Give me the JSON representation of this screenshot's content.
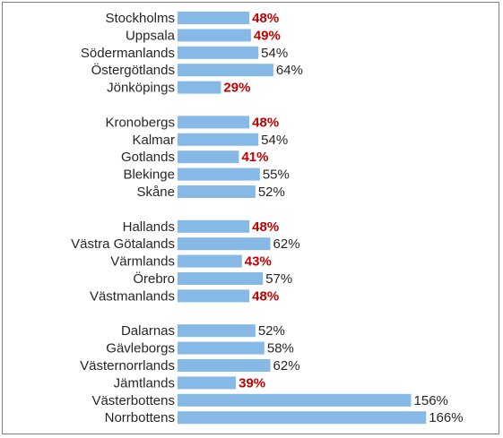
{
  "chart_data": {
    "type": "bar",
    "orientation": "horizontal",
    "title": "",
    "xlabel": "",
    "ylabel": "",
    "xlim": [
      0,
      166
    ],
    "grid": false,
    "highlight_color": "#c00000",
    "bar_color": "#86b9e6",
    "groups": [
      {
        "items": [
          {
            "label": "Stockholms",
            "value": 48,
            "display": "48%",
            "highlight": true
          },
          {
            "label": "Uppsala",
            "value": 49,
            "display": "49%",
            "highlight": true
          },
          {
            "label": "Södermanlands",
            "value": 54,
            "display": "54%",
            "highlight": false
          },
          {
            "label": "Östergötlands",
            "value": 64,
            "display": "64%",
            "highlight": false
          },
          {
            "label": "Jönköpings",
            "value": 29,
            "display": "29%",
            "highlight": true
          }
        ]
      },
      {
        "items": [
          {
            "label": "Kronobergs",
            "value": 48,
            "display": "48%",
            "highlight": true
          },
          {
            "label": "Kalmar",
            "value": 54,
            "display": "54%",
            "highlight": false
          },
          {
            "label": "Gotlands",
            "value": 41,
            "display": "41%",
            "highlight": true
          },
          {
            "label": "Blekinge",
            "value": 55,
            "display": "55%",
            "highlight": false
          },
          {
            "label": "Skåne",
            "value": 52,
            "display": "52%",
            "highlight": false
          }
        ]
      },
      {
        "items": [
          {
            "label": "Hallands",
            "value": 48,
            "display": "48%",
            "highlight": true
          },
          {
            "label": "Västra Götalands",
            "value": 62,
            "display": "62%",
            "highlight": false
          },
          {
            "label": "Värmlands",
            "value": 43,
            "display": "43%",
            "highlight": true
          },
          {
            "label": "Örebro",
            "value": 57,
            "display": "57%",
            "highlight": false
          },
          {
            "label": "Västmanlands",
            "value": 48,
            "display": "48%",
            "highlight": true
          }
        ]
      },
      {
        "items": [
          {
            "label": "Dalarnas",
            "value": 52,
            "display": "52%",
            "highlight": false
          },
          {
            "label": "Gävleborgs",
            "value": 58,
            "display": "58%",
            "highlight": false
          },
          {
            "label": "Västernorrlands",
            "value": 62,
            "display": "62%",
            "highlight": false
          },
          {
            "label": "Jämtlands",
            "value": 39,
            "display": "39%",
            "highlight": true
          },
          {
            "label": "Västerbottens",
            "value": 156,
            "display": "156%",
            "highlight": false
          },
          {
            "label": "Norrbottens",
            "value": 166,
            "display": "166%",
            "highlight": false
          }
        ]
      }
    ]
  }
}
